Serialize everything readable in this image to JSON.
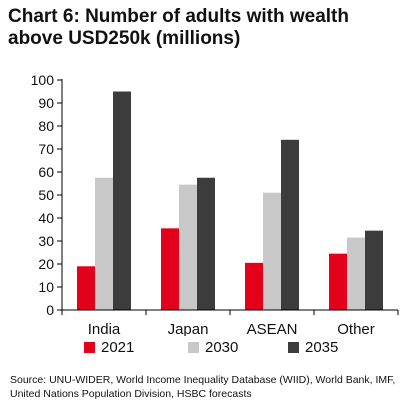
{
  "title": "Chart 6: Number of adults with wealth above USD250k (millions)",
  "source": "Source: UNU-WIDER, World Income Inequality Database (WIID), World Bank, IMF, United Nations Population Division, HSBC forecasts",
  "colors": {
    "2021": "#e3001b",
    "2030": "#c8c8c8",
    "2035": "#3c3c3c"
  },
  "chart_data": {
    "type": "bar",
    "title": "Chart 6: Number of adults with wealth above USD250k (millions)",
    "xlabel": "",
    "ylabel": "",
    "categories": [
      "India",
      "Japan",
      "ASEAN",
      "Other"
    ],
    "series": [
      {
        "name": "2021",
        "values": [
          19,
          35.5,
          20.5,
          24.5
        ]
      },
      {
        "name": "2030",
        "values": [
          57.5,
          54.5,
          51,
          31.5
        ]
      },
      {
        "name": "2035",
        "values": [
          95,
          57.5,
          74,
          34.5
        ]
      }
    ],
    "ylim": [
      0,
      100
    ],
    "yticks": [
      "0",
      "10",
      "20",
      "30",
      "40",
      "50",
      "60",
      "70",
      "80",
      "90",
      "100"
    ],
    "grid": false,
    "legend": "bottom"
  }
}
